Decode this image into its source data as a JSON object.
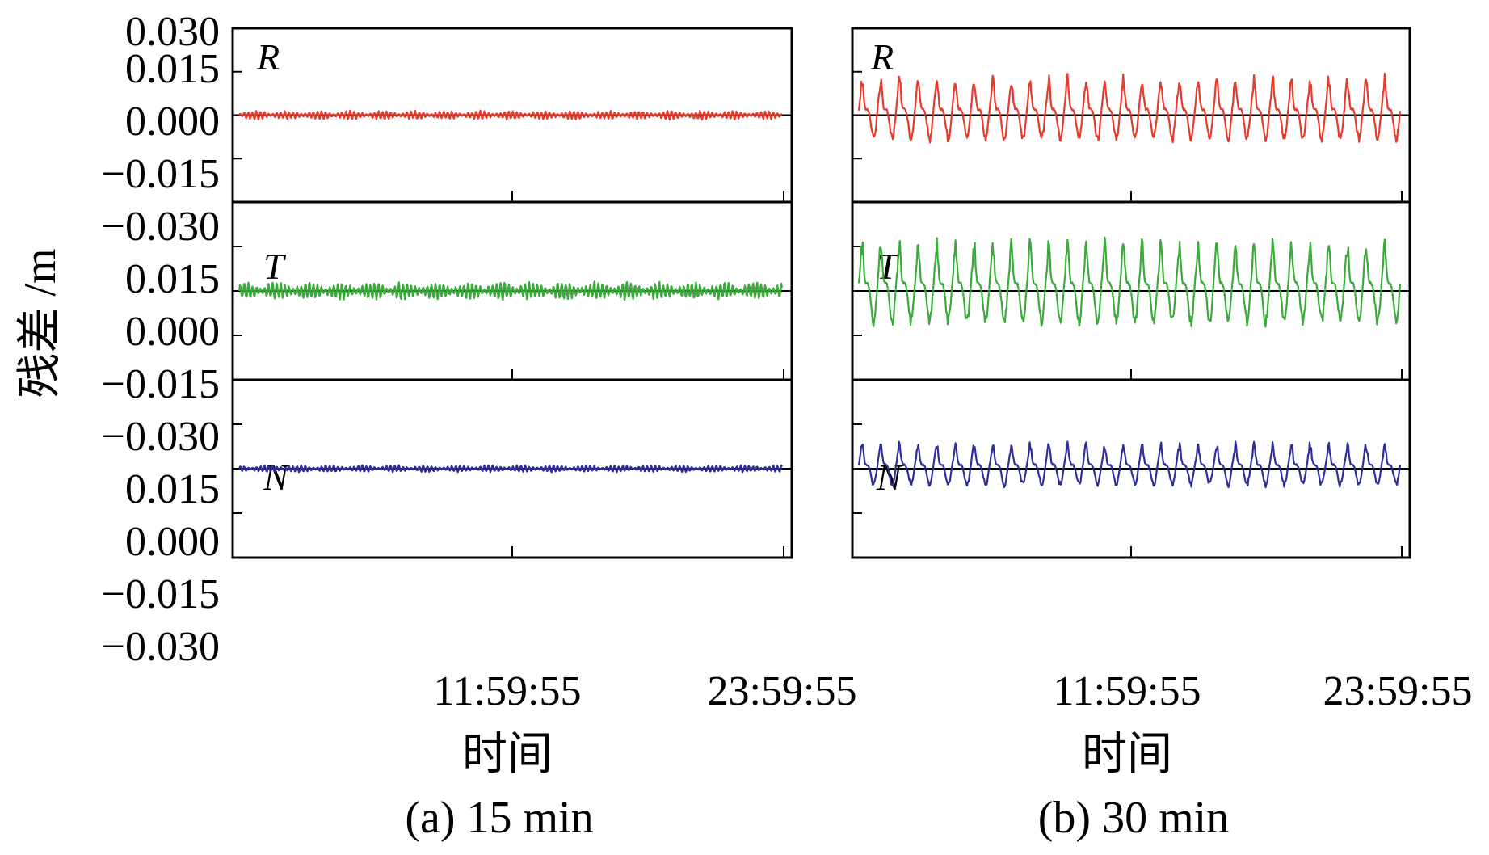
{
  "chart_data": {
    "type": "line",
    "ylabel": "残差 /m",
    "y_ticks": [
      "0.030",
      "0.015",
      "0.000",
      "−0.015",
      "−0.030"
    ],
    "ylim": [
      -0.03,
      0.03
    ],
    "x_ticks": [
      "11:59:55",
      "23:59:55"
    ],
    "components": [
      "R",
      "T",
      "N"
    ],
    "colors": {
      "R": "#e8392a",
      "T": "#3aab3a",
      "N": "#2e2e9a"
    },
    "subplots": [
      {
        "caption": "(a) 15 min",
        "xlabel": "时间",
        "amplitude": {
          "R": 0.0015,
          "T": 0.003,
          "N": 0.0012
        },
        "period_ratio": 1.0
      },
      {
        "caption": "(b) 30 min",
        "xlabel": "时间",
        "amplitude": {
          "R": 0.0115,
          "T": 0.0145,
          "N": 0.0075
        },
        "period_ratio": 2.0
      }
    ]
  }
}
